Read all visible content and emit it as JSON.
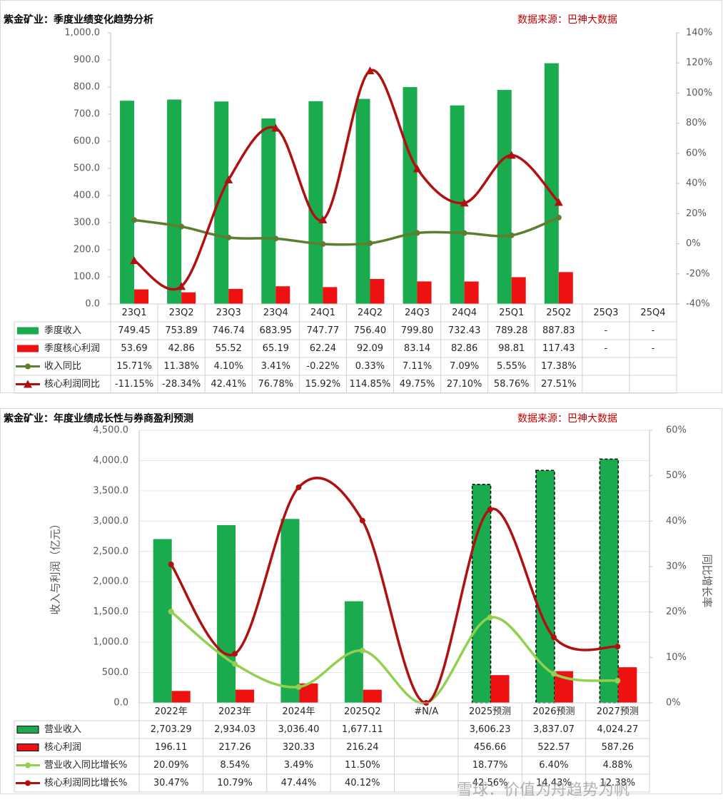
{
  "chart_data": [
    {
      "type": "combo",
      "title": "紫金矿业：季度业绩变化趋势分析",
      "source": "数据来源：巴神大数据",
      "categories": [
        "23Q1",
        "23Q2",
        "23Q3",
        "23Q4",
        "24Q1",
        "24Q2",
        "24Q3",
        "24Q4",
        "25Q1",
        "25Q2",
        "25Q3",
        "25Q4"
      ],
      "series": [
        {
          "name": "季度收入",
          "kind": "bar",
          "color": "#1aab4f",
          "values": [
            749.45,
            753.89,
            746.74,
            683.95,
            747.77,
            756.4,
            799.8,
            732.43,
            789.28,
            887.83,
            null,
            null
          ],
          "value_labels": [
            "749.45",
            "753.89",
            "746.74",
            "683.95",
            "747.77",
            "756.40",
            "799.80",
            "732.43",
            "789.28",
            "887.83",
            "-",
            "-"
          ]
        },
        {
          "name": "季度核心利润",
          "kind": "bar",
          "color": "#ee1111",
          "values": [
            53.69,
            42.86,
            55.52,
            65.19,
            62.24,
            92.09,
            83.14,
            82.86,
            98.81,
            117.43,
            null,
            null
          ],
          "value_labels": [
            "53.69",
            "42.86",
            "55.52",
            "65.19",
            "62.24",
            "92.09",
            "83.14",
            "82.86",
            "98.81",
            "117.43",
            "-",
            "-"
          ]
        },
        {
          "name": "收入同比",
          "kind": "line",
          "axis": "y2",
          "marker": "circle",
          "color": "#5b7f2e",
          "values": [
            15.71,
            11.38,
            4.1,
            3.41,
            -0.22,
            0.33,
            7.11,
            7.09,
            5.55,
            17.38,
            null,
            null
          ],
          "value_labels": [
            "15.71%",
            "11.38%",
            "4.10%",
            "3.41%",
            "-0.22%",
            "0.33%",
            "7.11%",
            "7.09%",
            "5.55%",
            "17.38%",
            null,
            null
          ]
        },
        {
          "name": "核心利润同比",
          "kind": "line",
          "axis": "y2",
          "marker": "triangle",
          "color": "#b01010",
          "values": [
            -11.15,
            -28.34,
            42.41,
            76.78,
            15.92,
            114.85,
            49.75,
            27.1,
            58.76,
            27.51,
            null,
            null
          ],
          "value_labels": [
            "-11.15%",
            "-28.34%",
            "42.41%",
            "76.78%",
            "15.92%",
            "114.85%",
            "49.75%",
            "27.10%",
            "58.76%",
            "27.51%",
            null,
            null
          ]
        }
      ],
      "ylim": [
        0,
        1000
      ],
      "yticks": [
        {
          "value": 0,
          "label": "0.0"
        },
        {
          "value": 100,
          "label": "100.0"
        },
        {
          "value": 200,
          "label": "200.0"
        },
        {
          "value": 300,
          "label": "300.0"
        },
        {
          "value": 400,
          "label": "400.0"
        },
        {
          "value": 500,
          "label": "500.0"
        },
        {
          "value": 600,
          "label": "600.0"
        },
        {
          "value": 700,
          "label": "700.0"
        },
        {
          "value": 800,
          "label": "800.0"
        },
        {
          "value": 900,
          "label": "900.0"
        },
        {
          "value": 1000,
          "label": "1,000.0"
        }
      ],
      "y2lim": [
        -40,
        140
      ],
      "y2ticks": [
        {
          "value": -40,
          "label": "-40%"
        },
        {
          "value": -20,
          "label": "-20%"
        },
        {
          "value": 0,
          "label": "0%"
        },
        {
          "value": 20,
          "label": "20%"
        },
        {
          "value": 40,
          "label": "40%"
        },
        {
          "value": 60,
          "label": "60%"
        },
        {
          "value": 80,
          "label": "80%"
        },
        {
          "value": 100,
          "label": "100%"
        },
        {
          "value": 120,
          "label": "120%"
        },
        {
          "value": 140,
          "label": "140%"
        }
      ],
      "grid": false,
      "smooth": true
    },
    {
      "type": "combo",
      "title": "紫金矿业：年度业绩成长性与券商盈利预测",
      "source": "数据来源：巴神大数据",
      "ylabel": "收入与利润（亿元）",
      "y2label": "同比增长率",
      "categories": [
        "2022年",
        "2023年",
        "2024年",
        "2025Q2",
        "#N/A",
        "2025预测",
        "2026预测",
        "2027预测"
      ],
      "series": [
        {
          "name": "营业收入",
          "kind": "bar",
          "color": "#1aab4f",
          "dashed": [
            false,
            false,
            false,
            false,
            false,
            true,
            true,
            true
          ],
          "values": [
            2703.29,
            2934.03,
            3036.4,
            1677.11,
            null,
            3606.23,
            3837.07,
            4024.27
          ],
          "value_labels": [
            "2,703.29",
            "2,934.03",
            "3,036.40",
            "1,677.11",
            null,
            "3,606.23",
            "3,837.07",
            "4,024.27"
          ]
        },
        {
          "name": "核心利润",
          "kind": "bar",
          "color": "#ee1111",
          "values": [
            196.11,
            217.26,
            320.33,
            216.24,
            null,
            456.66,
            522.57,
            587.26
          ],
          "value_labels": [
            "196.11",
            "217.26",
            "320.33",
            "216.24",
            null,
            "456.66",
            "522.57",
            "587.26"
          ]
        },
        {
          "name": "营业收入同比增长%",
          "kind": "line",
          "axis": "y2",
          "marker": "circle",
          "color": "#92d050",
          "values": [
            20.09,
            8.54,
            3.49,
            11.5,
            0,
            18.77,
            6.4,
            4.88
          ],
          "value_labels": [
            "20.09%",
            "8.54%",
            "3.49%",
            "11.50%",
            null,
            "18.77%",
            "6.40%",
            "4.88%"
          ]
        },
        {
          "name": "核心利润同比增长%",
          "kind": "line",
          "axis": "y2",
          "marker": "circle",
          "color": "#b01010",
          "values": [
            30.47,
            10.79,
            47.44,
            40.12,
            0,
            42.56,
            14.43,
            12.38
          ],
          "value_labels": [
            "30.47%",
            "10.79%",
            "47.44%",
            "40.12%",
            null,
            "42.56%",
            "14.43%",
            "12.38%"
          ]
        }
      ],
      "ylim": [
        0,
        4500
      ],
      "yticks": [
        {
          "value": 0,
          "label": "0.0"
        },
        {
          "value": 500,
          "label": "500.0"
        },
        {
          "value": 1000,
          "label": "1,000.0"
        },
        {
          "value": 1500,
          "label": "1,500.0"
        },
        {
          "value": 2000,
          "label": "2,000.0"
        },
        {
          "value": 2500,
          "label": "2,500.0"
        },
        {
          "value": 3000,
          "label": "3,000.0"
        },
        {
          "value": 3500,
          "label": "3,500.0"
        },
        {
          "value": 4000,
          "label": "4,000.0"
        },
        {
          "value": 4500,
          "label": "4,500.0"
        }
      ],
      "y2lim": [
        0,
        60
      ],
      "y2ticks": [
        {
          "value": 0,
          "label": "0%"
        },
        {
          "value": 10,
          "label": "10%"
        },
        {
          "value": 20,
          "label": "20%"
        },
        {
          "value": 30,
          "label": "30%"
        },
        {
          "value": 40,
          "label": "40%"
        },
        {
          "value": 50,
          "label": "50%"
        },
        {
          "value": 60,
          "label": "60%"
        }
      ],
      "grid": true,
      "smooth": true
    }
  ],
  "watermark": "雪球：价值为舟趋势为帆"
}
